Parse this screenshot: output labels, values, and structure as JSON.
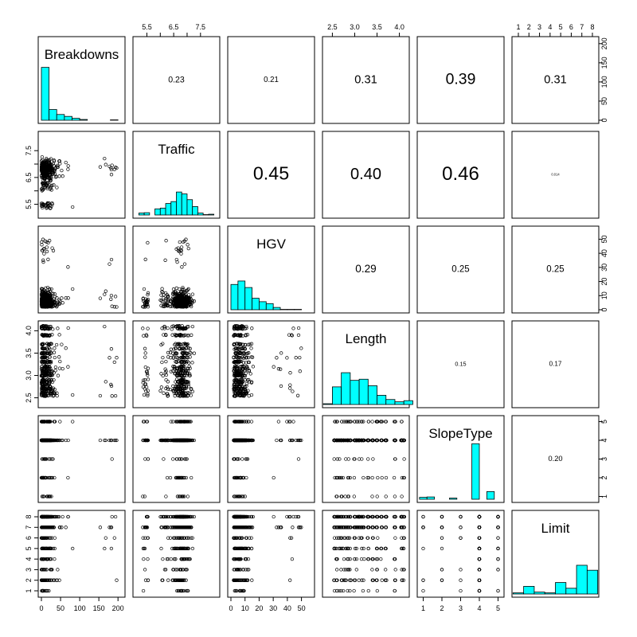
{
  "chart_data": {
    "type": "scatter-matrix",
    "variables": [
      "Breakdowns",
      "Traffic",
      "HGV",
      "Length",
      "SlopeType",
      "Limit"
    ],
    "ranges": [
      [
        0,
        210
      ],
      [
        5.1,
        8.1
      ],
      [
        0,
        57
      ],
      [
        2.35,
        4.15
      ],
      [
        0.85,
        5.15
      ],
      [
        0.7,
        8.3
      ]
    ],
    "ticks": {
      "Breakdowns": [
        "0",
        "50",
        "100",
        "150",
        "200"
      ],
      "Traffic": [
        "5.5",
        "6.5",
        "7.5"
      ],
      "Traffic_minor": [
        "6.0",
        "7.0"
      ],
      "HGV": [
        "0",
        "10",
        "20",
        "30",
        "40",
        "50"
      ],
      "Length": [
        "2.5",
        "3.0",
        "3.5",
        "4.0"
      ],
      "SlopeType": [
        "1",
        "2",
        "3",
        "4",
        "5"
      ],
      "Limit": [
        "1",
        "2",
        "3",
        "4",
        "5",
        "6",
        "7",
        "8"
      ]
    },
    "hist_axis": {
      "ticks": [
        "0",
        "50",
        "100",
        "150",
        "200"
      ],
      "max": 210
    },
    "correlations": [
      {
        "row": 0,
        "col": 1,
        "value": "0.23"
      },
      {
        "row": 0,
        "col": 2,
        "value": "0.21"
      },
      {
        "row": 0,
        "col": 3,
        "value": "0.31"
      },
      {
        "row": 0,
        "col": 4,
        "value": "0.39"
      },
      {
        "row": 0,
        "col": 5,
        "value": "0.31"
      },
      {
        "row": 1,
        "col": 2,
        "value": "0.45"
      },
      {
        "row": 1,
        "col": 3,
        "value": "0.40"
      },
      {
        "row": 1,
        "col": 4,
        "value": "0.46"
      },
      {
        "row": 1,
        "col": 5,
        "value": "0.014"
      },
      {
        "row": 2,
        "col": 3,
        "value": "0.29"
      },
      {
        "row": 2,
        "col": 4,
        "value": "0.25"
      },
      {
        "row": 2,
        "col": 5,
        "value": "0.25"
      },
      {
        "row": 3,
        "col": 4,
        "value": "0.15"
      },
      {
        "row": 3,
        "col": 5,
        "value": "0.17"
      },
      {
        "row": 4,
        "col": 5,
        "value": "0.20"
      }
    ],
    "histograms": {
      "Breakdowns": {
        "breaks": [
          0,
          20,
          40,
          60,
          80,
          100,
          120,
          140,
          160,
          180,
          200
        ],
        "counts": [
          138,
          28,
          15,
          10,
          5,
          2,
          0,
          0,
          0,
          1
        ]
      },
      "Traffic": {
        "breaks": [
          5.2,
          5.4,
          5.6,
          5.8,
          6.0,
          6.2,
          6.4,
          6.6,
          6.8,
          7.0,
          7.2,
          7.4,
          7.6,
          7.8,
          8.0
        ],
        "counts": [
          5,
          6,
          0,
          16,
          18,
          30,
          35,
          60,
          55,
          40,
          22,
          5,
          1,
          2
        ]
      },
      "HGV": {
        "breaks": [
          0,
          5,
          10,
          15,
          20,
          25,
          30,
          35,
          40,
          45,
          50,
          55
        ],
        "counts": [
          66,
          75,
          58,
          30,
          21,
          16,
          6,
          1,
          1,
          1,
          0
        ]
      },
      "Length": {
        "breaks": [
          2.3,
          2.5,
          2.7,
          2.9,
          3.1,
          3.3,
          3.5,
          3.7,
          3.9,
          4.1,
          4.3
        ],
        "counts": [
          2,
          46,
          83,
          63,
          66,
          49,
          24,
          13,
          7,
          10
        ]
      },
      "SlopeType": {
        "breaks": [
          0.8,
          1.2,
          1.6,
          2.0,
          2.4,
          2.8,
          3.2,
          3.6,
          4.0,
          4.4,
          4.8,
          5.2
        ],
        "counts": [
          5,
          6,
          0,
          0,
          3,
          0,
          0,
          145,
          0,
          20,
          0
        ]
      },
      "Limit": {
        "breaks": [
          0.5,
          1.5,
          2.5,
          3.5,
          4.5,
          5.5,
          6.5,
          7.5,
          8.5
        ],
        "counts": [
          3,
          20,
          5,
          3,
          30,
          15,
          75,
          62
        ]
      }
    }
  }
}
